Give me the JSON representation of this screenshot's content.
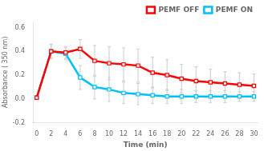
{
  "chart_data": {
    "type": "line",
    "xlabel": "Time (min)",
    "ylabel": "Absorbance ( 350 nm)",
    "x": [
      0,
      2,
      4,
      6,
      8,
      10,
      12,
      14,
      16,
      18,
      20,
      22,
      24,
      26,
      28,
      30
    ],
    "series": [
      {
        "name": "PEMF OFF",
        "color": "#ff0000",
        "marker": "square",
        "line_style": "solid",
        "values": [
          0.01,
          0.4,
          0.39,
          0.42,
          0.32,
          0.3,
          0.29,
          0.28,
          0.22,
          0.2,
          0.17,
          0.15,
          0.14,
          0.13,
          0.12,
          0.11
        ],
        "errors": [
          0.01,
          0.06,
          0.05,
          0.08,
          0.13,
          0.14,
          0.14,
          0.14,
          0.13,
          0.13,
          0.12,
          0.12,
          0.11,
          0.1,
          0.1,
          0.1
        ]
      },
      {
        "name": "PEMF ON",
        "color": "#00bfff",
        "marker": "square",
        "line_style": "solid",
        "values": [
          0.01,
          0.4,
          0.38,
          0.18,
          0.1,
          0.08,
          0.05,
          0.04,
          0.03,
          0.02,
          0.02,
          0.02,
          0.02,
          0.02,
          0.02,
          0.02
        ],
        "errors": [
          0.01,
          0.06,
          0.05,
          0.1,
          0.1,
          0.1,
          0.09,
          0.09,
          0.07,
          0.06,
          0.06,
          0.05,
          0.05,
          0.05,
          0.04,
          0.04
        ]
      }
    ],
    "xlim": [
      -0.5,
      30.5
    ],
    "xticks": [
      0,
      2,
      4,
      6,
      8,
      10,
      12,
      14,
      16,
      18,
      20,
      22,
      24,
      26,
      28,
      30
    ],
    "ylim": [
      -0.2,
      0.65
    ],
    "yticks": [
      -0.2,
      {
        "value": 0,
        "label": "0.0"
      },
      0.2,
      0.4,
      0.6
    ],
    "grid": false,
    "legend": "upper right"
  }
}
